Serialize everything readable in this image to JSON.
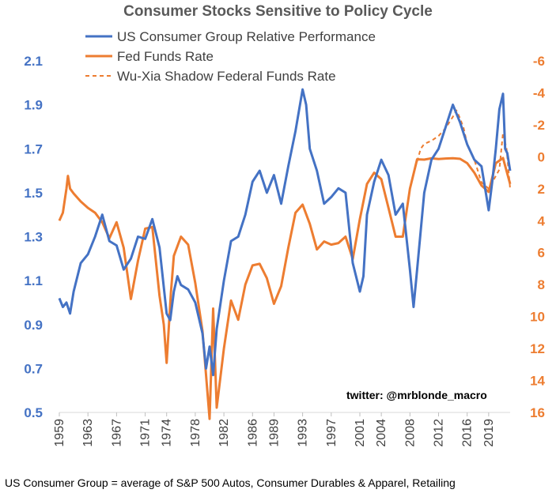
{
  "title": "Consumer Stocks Sensitive to Policy Cycle",
  "watermark": "twitter: @mrblonde_macro",
  "footnote": "US Consumer Group = average of S&P 500 Autos, Consumer Durables & Apparel, Retailing",
  "colors": {
    "blue": "#4472C4",
    "orange": "#ED7D31"
  },
  "chart_data": {
    "type": "line",
    "title": "Consumer Stocks Sensitive to Policy Cycle",
    "x_ticks": [
      "1959",
      "1963",
      "1967",
      "1971",
      "1974",
      "1978",
      "1982",
      "1986",
      "1989",
      "1993",
      "1997",
      "2001",
      "2004",
      "2008",
      "2012",
      "2016",
      "2019"
    ],
    "xlim": [
      1959,
      2022
    ],
    "y_left": {
      "lim": [
        0.5,
        2.1
      ],
      "ticks": [
        "0.5",
        "0.7",
        "0.9",
        "1.1",
        "1.3",
        "1.5",
        "1.7",
        "1.9",
        "2.1"
      ]
    },
    "y_right": {
      "lim": [
        16,
        -6
      ],
      "inverted": true,
      "ticks": [
        "16",
        "14",
        "12",
        "10",
        "8",
        "6",
        "4",
        "2",
        "0",
        "-2",
        "-4",
        "-6"
      ]
    },
    "legend": {
      "position": "top",
      "entries": [
        "US Consumer Group Relative Performance",
        "Fed Funds Rate",
        "Wu-Xia Shadow Federal Funds Rate"
      ]
    },
    "series": [
      {
        "name": "US Consumer Group Relative Performance",
        "axis": "left",
        "style": "solid",
        "color": "#4472C4",
        "x": [
          1959,
          1959.5,
          1960,
          1960.5,
          1961,
          1962,
          1963,
          1964,
          1965,
          1966,
          1967,
          1968,
          1969,
          1970,
          1971,
          1972,
          1973,
          1974,
          1974.5,
          1975,
          1975.5,
          1976,
          1977,
          1978,
          1979,
          1979.5,
          1980,
          1980.5,
          1981,
          1982,
          1983,
          1984,
          1985,
          1986,
          1987,
          1988,
          1989,
          1990,
          1991,
          1992,
          1993,
          1993.5,
          1994,
          1995,
          1996,
          1997,
          1998,
          1999,
          2000,
          2001,
          2001.5,
          2002,
          2003,
          2004,
          2005,
          2006,
          2007,
          2008,
          2008.5,
          2009,
          2010,
          2011,
          2012,
          2013,
          2014,
          2015,
          2016,
          2017,
          2018,
          2019,
          2019.5,
          2020,
          2020.5,
          2021,
          2021.3,
          2021.6,
          2022
        ],
        "y": [
          1.02,
          0.98,
          1.0,
          0.95,
          1.05,
          1.18,
          1.22,
          1.3,
          1.4,
          1.28,
          1.26,
          1.15,
          1.2,
          1.3,
          1.29,
          1.38,
          1.25,
          0.95,
          0.92,
          1.05,
          1.12,
          1.08,
          1.06,
          1.0,
          0.86,
          0.7,
          0.8,
          0.67,
          0.88,
          1.1,
          1.28,
          1.3,
          1.4,
          1.55,
          1.6,
          1.5,
          1.58,
          1.45,
          1.62,
          1.78,
          1.97,
          1.9,
          1.7,
          1.6,
          1.45,
          1.48,
          1.52,
          1.5,
          1.18,
          1.05,
          1.12,
          1.4,
          1.55,
          1.65,
          1.58,
          1.4,
          1.45,
          1.15,
          0.98,
          1.15,
          1.5,
          1.65,
          1.7,
          1.8,
          1.9,
          1.82,
          1.72,
          1.65,
          1.62,
          1.42,
          1.55,
          1.7,
          1.88,
          1.95,
          1.7,
          1.68,
          1.6
        ]
      },
      {
        "name": "Fed Funds Rate",
        "axis": "right",
        "style": "solid",
        "color": "#ED7D31",
        "x": [
          1959,
          1959.5,
          1960,
          1960.2,
          1960.5,
          1961,
          1962,
          1963,
          1964,
          1965,
          1966,
          1967,
          1968,
          1969,
          1970,
          1971,
          1972,
          1973,
          1973.6,
          1974,
          1974.6,
          1975,
          1976,
          1977,
          1978,
          1979,
          1980,
          1980.5,
          1981,
          1982,
          1983,
          1984,
          1985,
          1986,
          1987,
          1988,
          1989,
          1990,
          1991,
          1992,
          1993,
          1994,
          1995,
          1996,
          1997,
          1998,
          1999,
          2000,
          2001,
          2002,
          2003,
          2004,
          2005,
          2006,
          2007,
          2008,
          2009,
          2010,
          2011,
          2012,
          2013,
          2014,
          2015,
          2016,
          2017,
          2018,
          2019,
          2020,
          2021,
          2022
        ],
        "y": [
          4.0,
          3.5,
          2.0,
          1.2,
          2.0,
          2.3,
          2.8,
          3.2,
          3.5,
          4.1,
          5.1,
          4.1,
          5.7,
          8.9,
          6.5,
          4.5,
          4.4,
          8.7,
          10.5,
          12.9,
          8.5,
          6.2,
          5.0,
          5.5,
          7.9,
          10.9,
          16.4,
          9.5,
          15.7,
          12.0,
          9.0,
          10.2,
          8.0,
          6.8,
          6.7,
          7.6,
          9.2,
          8.1,
          5.7,
          3.5,
          3.0,
          4.2,
          5.8,
          5.3,
          5.5,
          5.4,
          5.0,
          6.4,
          3.9,
          1.7,
          1.0,
          1.4,
          3.2,
          5.0,
          5.0,
          2.0,
          0.16,
          0.18,
          0.1,
          0.14,
          0.11,
          0.09,
          0.13,
          0.4,
          1.0,
          1.8,
          2.2,
          0.4,
          0.08,
          1.7
        ]
      },
      {
        "name": "Wu-Xia Shadow Federal Funds Rate",
        "axis": "right",
        "style": "dashed",
        "color": "#ED7D31",
        "x": [
          2009,
          2009.5,
          2010,
          2011,
          2012,
          2013,
          2014,
          2014.5,
          2015,
          2015.5,
          2016,
          2017,
          2018,
          2019,
          2020,
          2020.5,
          2021,
          2021.5,
          2022
        ],
        "y": [
          0.3,
          -0.5,
          -0.8,
          -1.0,
          -1.3,
          -1.8,
          -2.5,
          -2.9,
          -2.4,
          -1.8,
          -0.8,
          0.2,
          1.6,
          2.0,
          1.2,
          0.8,
          -1.5,
          -0.5,
          2.0
        ]
      }
    ]
  }
}
